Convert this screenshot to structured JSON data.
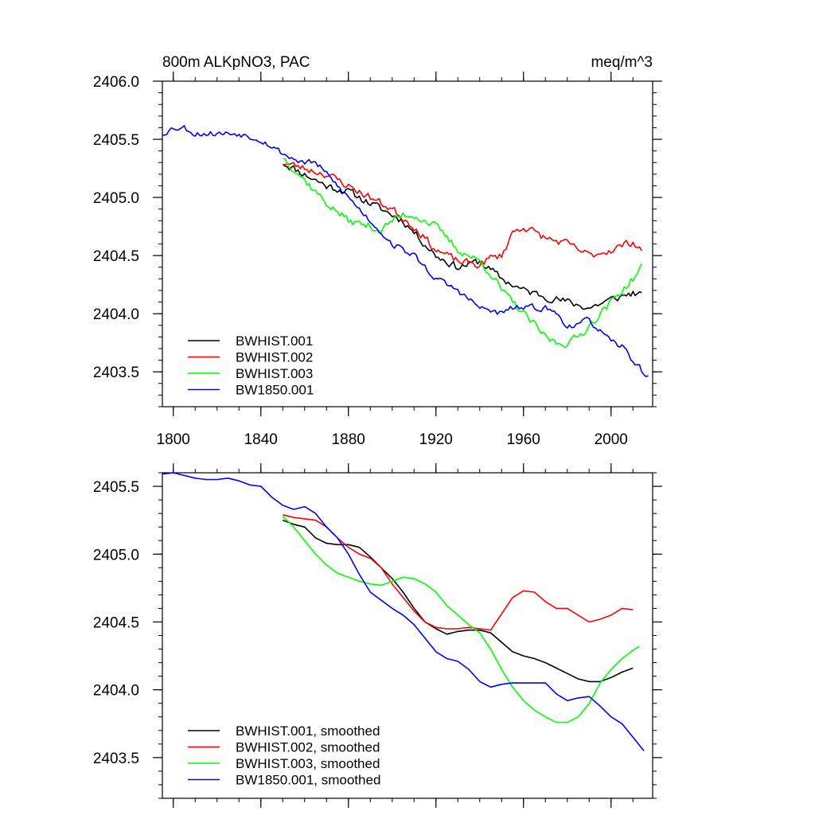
{
  "chart_data": [
    {
      "type": "line",
      "title_left": "800m ALKpNO3, PAC",
      "title_right": "meq/m^3",
      "xlim": [
        1795,
        2019
      ],
      "ylim": [
        2403.2,
        2406.0
      ],
      "yticks": [
        2403.5,
        2404.0,
        2404.5,
        2405.0,
        2405.5,
        2406.0
      ],
      "ytick_labels": [
        "2403.5",
        "2404.0",
        "2404.5",
        "2405.0",
        "2405.5",
        "2406.0"
      ],
      "xticks": [
        1800,
        1840,
        1880,
        1920,
        1960,
        2000
      ],
      "xtick_labels": [
        "1800",
        "1840",
        "1880",
        "1920",
        "1960",
        "2000"
      ],
      "legend_position": "bottom-left",
      "series": [
        {
          "name": "BWHIST.001",
          "color": "#000000",
          "noise": 0.05,
          "seed": 11,
          "x": [
            1850,
            1855,
            1860,
            1870,
            1880,
            1890,
            1900,
            1905,
            1910,
            1920,
            1930,
            1940,
            1950,
            1960,
            1970,
            1980,
            1990,
            2000,
            2010,
            2014
          ],
          "y": [
            2405.3,
            2405.25,
            2405.2,
            2405.1,
            2405.05,
            2404.95,
            2404.85,
            2404.8,
            2404.7,
            2404.5,
            2404.4,
            2404.45,
            2404.3,
            2404.2,
            2404.15,
            2404.1,
            2404.05,
            2404.12,
            2404.18,
            2404.15
          ]
        },
        {
          "name": "BWHIST.002",
          "color": "#ff0000",
          "noise": 0.05,
          "seed": 23,
          "x": [
            1850,
            1860,
            1870,
            1880,
            1890,
            1900,
            1910,
            1920,
            1930,
            1940,
            1945,
            1950,
            1955,
            1960,
            1965,
            1970,
            1980,
            1990,
            2000,
            2010,
            2014
          ],
          "y": [
            2405.3,
            2405.25,
            2405.2,
            2405.1,
            2405.0,
            2404.9,
            2404.75,
            2404.55,
            2404.45,
            2404.42,
            2404.48,
            2404.5,
            2404.7,
            2404.75,
            2404.7,
            2404.65,
            2404.6,
            2404.5,
            2404.55,
            2404.62,
            2404.55
          ]
        },
        {
          "name": "BWHIST.003",
          "color": "#00ff00",
          "noise": 0.05,
          "seed": 37,
          "x": [
            1850,
            1855,
            1860,
            1865,
            1870,
            1880,
            1890,
            1895,
            1900,
            1905,
            1910,
            1920,
            1930,
            1940,
            1945,
            1950,
            1960,
            1970,
            1975,
            1980,
            1985,
            1990,
            2000,
            2010,
            2014
          ],
          "y": [
            2405.35,
            2405.25,
            2405.15,
            2405.05,
            2404.95,
            2404.8,
            2404.75,
            2404.72,
            2404.8,
            2404.85,
            2404.85,
            2404.75,
            2404.55,
            2404.45,
            2404.35,
            2404.2,
            2404.0,
            2403.8,
            2403.75,
            2403.75,
            2403.8,
            2403.9,
            2404.1,
            2404.3,
            2404.4
          ]
        },
        {
          "name": "BW1850.001",
          "color": "#0000ff",
          "noise": 0.04,
          "seed": 53,
          "x": [
            1795,
            1800,
            1805,
            1810,
            1820,
            1830,
            1840,
            1850,
            1855,
            1860,
            1865,
            1870,
            1875,
            1880,
            1890,
            1900,
            1910,
            1920,
            1930,
            1940,
            1950,
            1955,
            1960,
            1970,
            1975,
            1980,
            1985,
            1990,
            1995,
            2000,
            2005,
            2010,
            2017
          ],
          "y": [
            2405.55,
            2405.6,
            2405.6,
            2405.55,
            2405.55,
            2405.55,
            2405.5,
            2405.38,
            2405.33,
            2405.3,
            2405.3,
            2405.2,
            2405.1,
            2405.0,
            2404.8,
            2404.6,
            2404.5,
            2404.3,
            2404.2,
            2404.05,
            2404.0,
            2404.05,
            2404.05,
            2404.05,
            2404.0,
            2403.9,
            2403.9,
            2403.95,
            2403.85,
            2403.75,
            2403.72,
            2403.6,
            2403.45
          ]
        }
      ]
    },
    {
      "type": "line",
      "xlim": [
        1795,
        2019
      ],
      "ylim": [
        2403.2,
        2405.6
      ],
      "yticks": [
        2403.5,
        2404.0,
        2404.5,
        2405.0,
        2405.5
      ],
      "ytick_labels": [
        "2403.5",
        "2404.0",
        "2404.5",
        "2405.0",
        "2405.5"
      ],
      "xticks": [
        1800,
        1840,
        1880,
        1920,
        1960,
        2000
      ],
      "legend_position": "bottom-left",
      "series": [
        {
          "name": "BWHIST.001, smoothed",
          "color": "#000000",
          "x": [
            1850,
            1855,
            1860,
            1865,
            1870,
            1875,
            1880,
            1885,
            1890,
            1895,
            1900,
            1905,
            1910,
            1915,
            1920,
            1925,
            1930,
            1935,
            1940,
            1945,
            1950,
            1955,
            1960,
            1965,
            1970,
            1975,
            1980,
            1985,
            1990,
            1995,
            2000,
            2005,
            2010
          ],
          "y": [
            2405.25,
            2405.22,
            2405.2,
            2405.12,
            2405.08,
            2405.07,
            2405.07,
            2405.05,
            2404.98,
            2404.9,
            2404.82,
            2404.72,
            2404.6,
            2404.5,
            2404.45,
            2404.41,
            2404.43,
            2404.44,
            2404.44,
            2404.42,
            2404.35,
            2404.28,
            2404.25,
            2404.23,
            2404.2,
            2404.16,
            2404.12,
            2404.08,
            2404.06,
            2404.06,
            2404.09,
            2404.13,
            2404.16
          ]
        },
        {
          "name": "BWHIST.002, smoothed",
          "color": "#ff0000",
          "x": [
            1850,
            1855,
            1860,
            1865,
            1870,
            1875,
            1880,
            1885,
            1890,
            1895,
            1900,
            1905,
            1910,
            1915,
            1920,
            1925,
            1930,
            1935,
            1940,
            1945,
            1950,
            1955,
            1960,
            1965,
            1970,
            1975,
            1980,
            1985,
            1990,
            1995,
            2000,
            2005,
            2010
          ],
          "y": [
            2405.29,
            2405.27,
            2405.26,
            2405.25,
            2405.2,
            2405.12,
            2405.05,
            2405.0,
            2404.97,
            2404.9,
            2404.78,
            2404.68,
            2404.58,
            2404.5,
            2404.46,
            2404.45,
            2404.45,
            2404.46,
            2404.45,
            2404.44,
            2404.56,
            2404.68,
            2404.73,
            2404.72,
            2404.65,
            2404.6,
            2404.6,
            2404.55,
            2404.5,
            2404.52,
            2404.55,
            2404.6,
            2404.59
          ]
        },
        {
          "name": "BWHIST.003, smoothed",
          "color": "#00ff00",
          "x": [
            1850,
            1855,
            1860,
            1865,
            1870,
            1875,
            1880,
            1885,
            1890,
            1895,
            1900,
            1905,
            1910,
            1915,
            1920,
            1925,
            1930,
            1935,
            1940,
            1945,
            1950,
            1955,
            1960,
            1965,
            1970,
            1975,
            1980,
            1985,
            1990,
            1995,
            2000,
            2005,
            2010,
            2013
          ],
          "y": [
            2405.28,
            2405.2,
            2405.1,
            2405.0,
            2404.92,
            2404.86,
            2404.83,
            2404.8,
            2404.78,
            2404.77,
            2404.8,
            2404.83,
            2404.82,
            2404.78,
            2404.72,
            2404.62,
            2404.55,
            2404.48,
            2404.42,
            2404.3,
            2404.15,
            2404.02,
            2403.92,
            2403.85,
            2403.8,
            2403.76,
            2403.76,
            2403.8,
            2403.9,
            2404.05,
            2404.15,
            2404.23,
            2404.29,
            2404.32
          ]
        },
        {
          "name": "BW1850.001, smoothed",
          "color": "#0000ff",
          "x": [
            1795,
            1800,
            1805,
            1810,
            1815,
            1820,
            1825,
            1830,
            1835,
            1840,
            1845,
            1850,
            1855,
            1860,
            1865,
            1870,
            1875,
            1880,
            1885,
            1890,
            1895,
            1900,
            1905,
            1910,
            1915,
            1920,
            1925,
            1930,
            1935,
            1940,
            1945,
            1950,
            1955,
            1960,
            1965,
            1970,
            1975,
            1980,
            1985,
            1990,
            1995,
            2000,
            2005,
            2010,
            2015
          ],
          "y": [
            2405.59,
            2405.6,
            2405.58,
            2405.56,
            2405.55,
            2405.55,
            2405.56,
            2405.54,
            2405.51,
            2405.5,
            2405.42,
            2405.36,
            2405.33,
            2405.35,
            2405.3,
            2405.2,
            2405.12,
            2405.0,
            2404.85,
            2404.72,
            2404.66,
            2404.6,
            2404.55,
            2404.48,
            2404.38,
            2404.28,
            2404.23,
            2404.21,
            2404.15,
            2404.06,
            2404.02,
            2404.04,
            2404.05,
            2404.05,
            2404.05,
            2404.05,
            2403.97,
            2403.92,
            2403.94,
            2403.95,
            2403.88,
            2403.8,
            2403.75,
            2403.65,
            2403.55
          ]
        }
      ]
    }
  ]
}
